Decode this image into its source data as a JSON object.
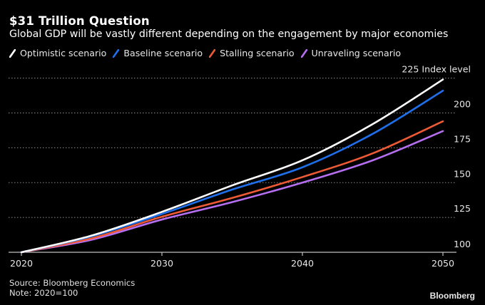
{
  "header": {
    "title": "$31 Trillion Question",
    "subtitle": "Global GDP will be vastly different depending on the engagement by major economies"
  },
  "footer": {
    "source": "Source: Bloomberg Economics",
    "note": "Note: 2020=100",
    "brand": "Bloomberg"
  },
  "chart_data": {
    "type": "line",
    "title": "$31 Trillion Question",
    "subtitle": "Global GDP will be vastly different depending on the engagement by major economies",
    "xlabel": "",
    "ylabel": "Index level",
    "y_unit_label": "Index level",
    "x": [
      2020,
      2025,
      2030,
      2035,
      2040,
      2045,
      2050
    ],
    "xlim": [
      2020,
      2051
    ],
    "ylim": [
      100,
      225
    ],
    "x_ticks": [
      2020,
      2030,
      2040,
      2050
    ],
    "x_tick_labels": [
      "2020",
      "2030",
      "2040",
      "2050"
    ],
    "y_ticks": [
      100,
      125,
      150,
      175,
      200,
      225
    ],
    "y_tick_labels": [
      "100",
      "125",
      "150",
      "175",
      "200",
      "225"
    ],
    "top_tick_suffix": "Index level",
    "grid": true,
    "grid_style": "dotted-horizontal",
    "y_axis_side": "right",
    "legend_position": "top-left",
    "background": "#000000",
    "series": [
      {
        "name": "Optimistic scenario",
        "color": "#ffffff",
        "values": [
          100,
          112,
          129,
          148,
          166,
          192,
          224
        ]
      },
      {
        "name": "Baseline scenario",
        "color": "#1f6feb",
        "values": [
          100,
          111.5,
          127.5,
          145,
          161,
          185,
          216
        ]
      },
      {
        "name": "Stalling scenario",
        "color": "#ee5a35",
        "values": [
          100,
          110,
          125.5,
          139,
          154,
          171,
          194
        ]
      },
      {
        "name": "Unraveling scenario",
        "color": "#b56ff0",
        "values": [
          100,
          109,
          123.5,
          136,
          150,
          166,
          187
        ]
      }
    ]
  }
}
